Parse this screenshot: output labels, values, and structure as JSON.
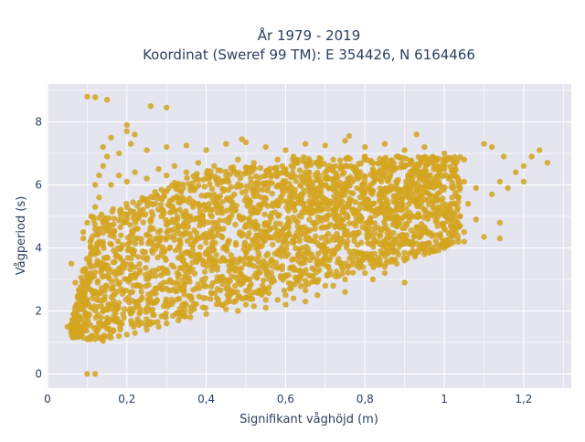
{
  "chart_data": {
    "type": "scatter",
    "title_line1": "År 1979 - 2019",
    "title_line2": "Koordinat (Sweref 99 TM): E 354426, N 6164466",
    "xlabel": "Signifikant våghöjd (m)",
    "ylabel": "Vågperiod (s)",
    "xlim": [
      0,
      1.32
    ],
    "ylim": [
      -0.45,
      9.2
    ],
    "x_ticks": [
      {
        "value": 0,
        "label": "0"
      },
      {
        "value": 0.2,
        "label": "0,2"
      },
      {
        "value": 0.4,
        "label": "0,4"
      },
      {
        "value": 0.6,
        "label": "0,6"
      },
      {
        "value": 0.8,
        "label": "0,8"
      },
      {
        "value": 1.0,
        "label": "1"
      },
      {
        "value": 1.2,
        "label": "1,2"
      }
    ],
    "y_ticks": [
      {
        "value": 0,
        "label": "0"
      },
      {
        "value": 2,
        "label": "2"
      },
      {
        "value": 4,
        "label": "4"
      },
      {
        "value": 6,
        "label": "6"
      },
      {
        "value": 8,
        "label": "8"
      }
    ],
    "grid": true,
    "colors": {
      "marker": "#D4A520",
      "plot_bg": "#E5E5F0",
      "grid": "#ffffff"
    },
    "points": [
      [
        0.05,
        1.5
      ],
      [
        0.06,
        1.3
      ],
      [
        0.07,
        1.25
      ],
      [
        0.08,
        1.2
      ],
      [
        0.09,
        1.15
      ],
      [
        0.1,
        1.1
      ],
      [
        0.12,
        1.1
      ],
      [
        0.14,
        1.05
      ],
      [
        0.16,
        1.15
      ],
      [
        0.18,
        1.2
      ],
      [
        0.2,
        1.25
      ],
      [
        0.22,
        1.3
      ],
      [
        0.25,
        1.4
      ],
      [
        0.28,
        1.5
      ],
      [
        0.3,
        1.6
      ],
      [
        0.33,
        1.7
      ],
      [
        0.36,
        1.8
      ],
      [
        0.4,
        1.9
      ],
      [
        0.45,
        2.05
      ],
      [
        0.5,
        2.2
      ],
      [
        0.55,
        2.35
      ],
      [
        0.6,
        2.5
      ],
      [
        0.65,
        2.65
      ],
      [
        0.7,
        2.8
      ],
      [
        0.75,
        3.0
      ],
      [
        0.8,
        3.2
      ],
      [
        0.85,
        3.4
      ],
      [
        0.9,
        3.6
      ],
      [
        0.95,
        3.8
      ],
      [
        1.0,
        4.0
      ],
      [
        1.05,
        4.2
      ],
      [
        1.1,
        4.35
      ],
      [
        1.14,
        4.3
      ],
      [
        0.07,
        1.8
      ],
      [
        0.08,
        2.2
      ],
      [
        0.09,
        2.6
      ],
      [
        0.1,
        3.0
      ],
      [
        0.11,
        3.4
      ],
      [
        0.12,
        3.8
      ],
      [
        0.13,
        4.2
      ],
      [
        0.12,
        4.6
      ],
      [
        0.11,
        5.0
      ],
      [
        0.12,
        5.3
      ],
      [
        0.13,
        5.6
      ],
      [
        0.12,
        6.0
      ],
      [
        0.13,
        6.3
      ],
      [
        0.14,
        6.6
      ],
      [
        0.15,
        6.9
      ],
      [
        0.14,
        7.2
      ],
      [
        0.16,
        7.5
      ],
      [
        0.2,
        7.9
      ],
      [
        0.2,
        7.7
      ],
      [
        0.21,
        7.3
      ],
      [
        0.1,
        8.8
      ],
      [
        0.12,
        8.78
      ],
      [
        0.15,
        8.7
      ],
      [
        0.26,
        8.5
      ],
      [
        0.3,
        8.45
      ],
      [
        0.22,
        7.6
      ],
      [
        0.18,
        7.0
      ],
      [
        0.25,
        7.1
      ],
      [
        0.3,
        7.2
      ],
      [
        0.35,
        7.25
      ],
      [
        0.4,
        7.1
      ],
      [
        0.45,
        7.3
      ],
      [
        0.5,
        7.35
      ],
      [
        0.49,
        7.45
      ],
      [
        0.55,
        7.2
      ],
      [
        0.6,
        7.1
      ],
      [
        0.65,
        7.3
      ],
      [
        0.7,
        7.25
      ],
      [
        0.75,
        7.4
      ],
      [
        0.76,
        7.55
      ],
      [
        0.8,
        7.2
      ],
      [
        0.85,
        7.3
      ],
      [
        0.9,
        7.1
      ],
      [
        0.93,
        7.6
      ],
      [
        0.95,
        7.2
      ],
      [
        1.0,
        7.0
      ],
      [
        1.05,
        6.8
      ],
      [
        1.1,
        7.3
      ],
      [
        1.12,
        7.2
      ],
      [
        1.15,
        6.9
      ],
      [
        1.18,
        6.4
      ],
      [
        1.2,
        6.1
      ],
      [
        1.22,
        6.9
      ],
      [
        1.24,
        7.1
      ],
      [
        1.26,
        6.7
      ],
      [
        1.2,
        6.6
      ],
      [
        1.14,
        6.1
      ],
      [
        1.16,
        5.9
      ],
      [
        1.12,
        5.7
      ],
      [
        1.08,
        5.9
      ],
      [
        1.05,
        6.1
      ],
      [
        1.02,
        6.3
      ],
      [
        1.0,
        6.5
      ],
      [
        0.97,
        6.7
      ],
      [
        0.95,
        6.4
      ],
      [
        0.92,
        6.2
      ],
      [
        0.9,
        6.6
      ],
      [
        0.88,
        6.9
      ],
      [
        0.85,
        6.7
      ],
      [
        0.82,
        6.5
      ],
      [
        0.8,
        6.9
      ],
      [
        0.78,
        6.3
      ],
      [
        0.75,
        6.6
      ],
      [
        0.72,
        6.8
      ],
      [
        0.7,
        6.2
      ],
      [
        0.68,
        6.7
      ],
      [
        0.65,
        6.4
      ],
      [
        0.62,
        6.9
      ],
      [
        0.6,
        6.5
      ],
      [
        0.58,
        6.8
      ],
      [
        0.55,
        6.3
      ],
      [
        0.52,
        6.7
      ],
      [
        0.5,
        6.4
      ],
      [
        0.48,
        6.8
      ],
      [
        0.45,
        6.3
      ],
      [
        0.42,
        6.6
      ],
      [
        0.4,
        6.2
      ],
      [
        0.38,
        6.7
      ],
      [
        0.35,
        6.4
      ],
      [
        0.32,
        6.6
      ],
      [
        0.3,
        6.3
      ],
      [
        0.28,
        6.5
      ],
      [
        0.25,
        6.2
      ],
      [
        0.22,
        6.4
      ],
      [
        0.2,
        6.1
      ],
      [
        0.18,
        6.3
      ],
      [
        0.16,
        6.0
      ],
      [
        0.1,
        0.0
      ],
      [
        0.12,
        0.0
      ],
      [
        0.06,
        3.5
      ],
      [
        0.07,
        2.9
      ],
      [
        0.08,
        2.5
      ],
      [
        0.09,
        4.3
      ],
      [
        0.09,
        4.5
      ],
      [
        0.1,
        4.8
      ],
      [
        1.08,
        4.9
      ],
      [
        1.14,
        4.8
      ],
      [
        1.05,
        4.5
      ],
      [
        0.98,
        4.4
      ],
      [
        0.95,
        4.1
      ],
      [
        0.92,
        3.9
      ],
      [
        0.88,
        3.5
      ],
      [
        0.85,
        3.2
      ],
      [
        0.82,
        3.0
      ],
      [
        0.9,
        2.9
      ],
      [
        0.75,
        2.6
      ],
      [
        0.72,
        2.8
      ],
      [
        0.68,
        2.5
      ],
      [
        0.65,
        2.3
      ],
      [
        0.62,
        2.4
      ],
      [
        0.6,
        2.2
      ],
      [
        0.58,
        2.35
      ],
      [
        0.55,
        2.1
      ],
      [
        0.52,
        2.15
      ],
      [
        0.48,
        2.0
      ],
      [
        0.9,
        4.3
      ],
      [
        0.95,
        4.5
      ],
      [
        1.0,
        4.6
      ],
      [
        1.02,
        4.4
      ],
      [
        1.04,
        4.7
      ],
      [
        0.87,
        4.1
      ],
      [
        0.84,
        3.9
      ],
      [
        0.8,
        3.7
      ],
      [
        0.77,
        3.6
      ],
      [
        0.74,
        3.5
      ],
      [
        0.85,
        5.2
      ],
      [
        0.88,
        5.6
      ],
      [
        0.9,
        5.0
      ],
      [
        0.93,
        5.4
      ],
      [
        0.96,
        5.1
      ],
      [
        0.98,
        5.5
      ],
      [
        1.0,
        5.2
      ],
      [
        1.02,
        5.6
      ],
      [
        1.04,
        5.0
      ],
      [
        1.06,
        5.4
      ],
      [
        0.7,
        5.5
      ],
      [
        0.72,
        5.2
      ],
      [
        0.74,
        5.8
      ],
      [
        0.76,
        5.4
      ],
      [
        0.78,
        5.9
      ],
      [
        0.8,
        5.5
      ],
      [
        0.82,
        5.8
      ],
      [
        0.84,
        5.3
      ],
      [
        0.86,
        5.9
      ],
      [
        0.66,
        4.9
      ],
      [
        0.3,
        5.8
      ],
      [
        0.32,
        5.2
      ],
      [
        0.34,
        5.6
      ],
      [
        0.36,
        5.0
      ],
      [
        0.38,
        5.4
      ],
      [
        0.42,
        5.7
      ],
      [
        0.44,
        5.1
      ],
      [
        0.46,
        5.5
      ],
      [
        0.5,
        5.8
      ],
      [
        0.52,
        5.2
      ],
      [
        0.54,
        5.6
      ],
      [
        0.56,
        5.0
      ],
      [
        0.58,
        5.5
      ],
      [
        0.6,
        5.9
      ],
      [
        0.62,
        5.3
      ],
      [
        0.64,
        5.7
      ],
      [
        0.66,
        5.2
      ],
      [
        0.68,
        5.6
      ],
      [
        0.56,
        4.6
      ],
      [
        0.6,
        4.4
      ]
    ]
  }
}
